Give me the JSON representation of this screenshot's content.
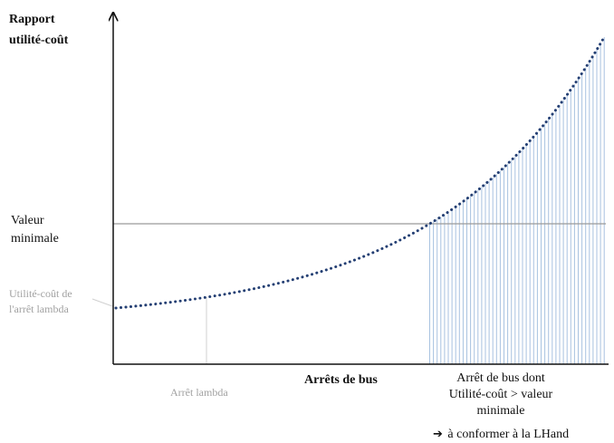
{
  "chart_data": {
    "type": "line",
    "curve": "exponential",
    "y_axis_title": "Rapport utilité-coût",
    "x_axis_title": "Arrêts de bus",
    "grid": false,
    "legend": "none",
    "threshold": {
      "label": "Valeur minimale"
    },
    "reference_point": {
      "y_label": "Utilité-coût de l'arrêt lambda",
      "x_label": "Arrêt lambda"
    },
    "highlight_region": {
      "lines": [
        "Arrêt de bus dont",
        "Utilité-coût > valeur",
        "minimale"
      ],
      "action": "à conformer à la LHand",
      "color": "#a8c2e0"
    },
    "colors": {
      "curve": "#243f73",
      "axis": "#111111",
      "threshold_line": "#9a9a9a",
      "reference_line": "#d0d0d0",
      "hatch": "#a8c2e0"
    }
  }
}
